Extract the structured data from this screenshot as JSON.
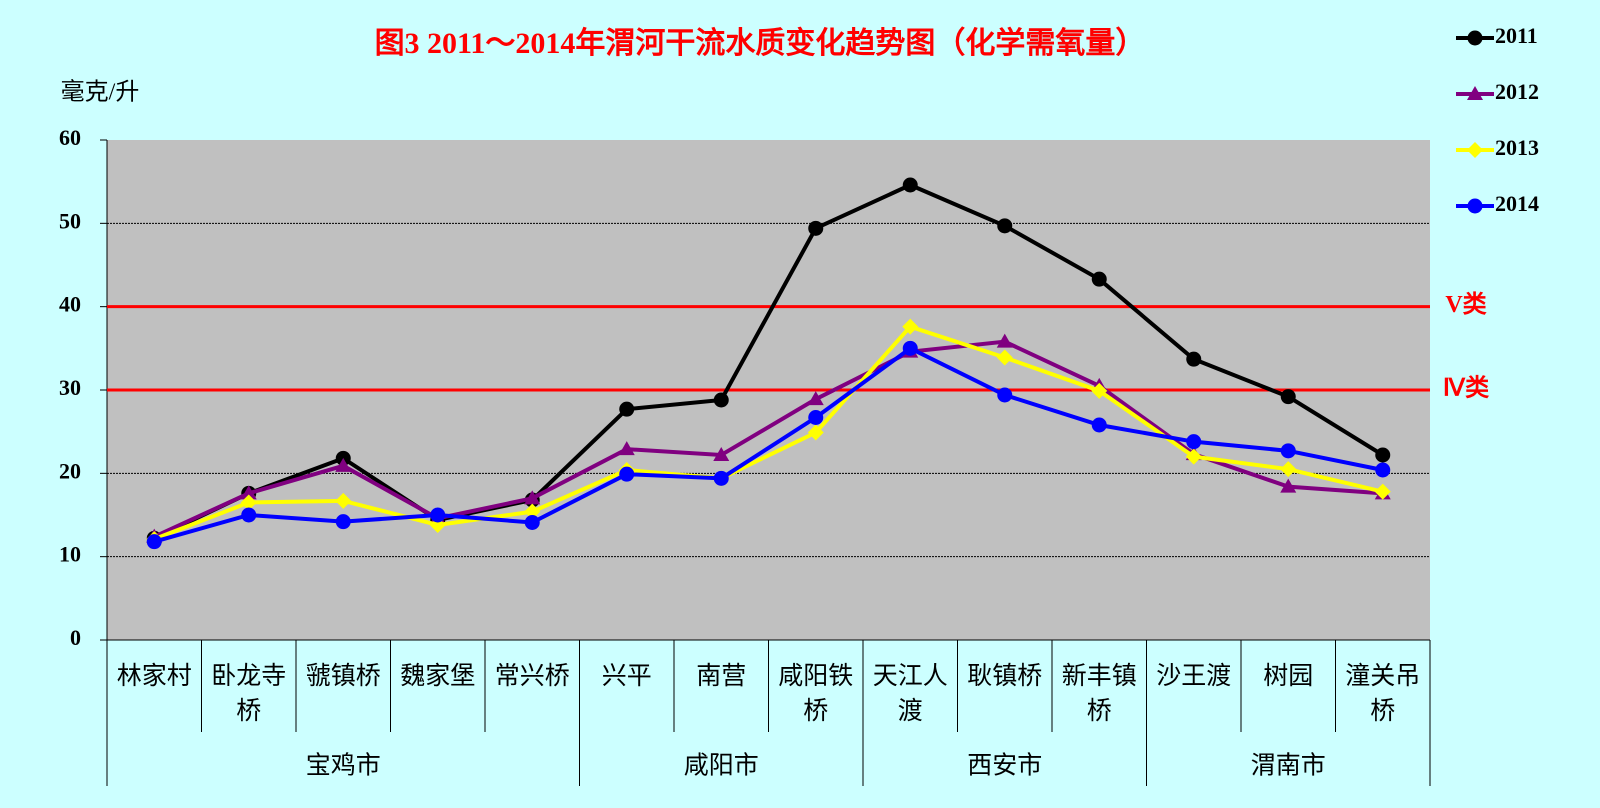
{
  "chart_data": {
    "type": "line",
    "title": "图3  2011～2014年渭河干流水质变化趋势图（化学需氧量）",
    "y_label": "毫克/升",
    "groups": [
      {
        "name": "宝鸡市",
        "categories": [
          "林家村",
          "卧龙寺桥",
          "虢镇桥",
          "魏家堡",
          "常兴桥"
        ]
      },
      {
        "name": "咸阳市",
        "categories": [
          "兴平",
          "南营",
          "咸阳铁桥"
        ]
      },
      {
        "name": "西安市",
        "categories": [
          "天江人渡",
          "耿镇桥",
          "新丰镇桥"
        ]
      },
      {
        "name": "渭南市",
        "categories": [
          "沙王渡",
          "树园",
          "潼关吊桥"
        ]
      }
    ],
    "series": [
      {
        "name": "2011",
        "color": "#000000",
        "marker": "circle",
        "values": [
          12.2,
          17.6,
          21.8,
          14.4,
          16.8,
          27.7,
          28.8,
          49.4,
          54.6,
          49.7,
          43.3,
          33.7,
          29.2,
          22.2
        ]
      },
      {
        "name": "2012",
        "color": "#800080",
        "marker": "triangle",
        "values": [
          12.4,
          17.6,
          20.9,
          14.6,
          17.0,
          22.9,
          22.2,
          28.9,
          34.6,
          35.8,
          30.5,
          22.3,
          18.4,
          17.6
        ]
      },
      {
        "name": "2013",
        "color": "#ffff00",
        "marker": "diamond",
        "values": [
          12.1,
          16.5,
          16.7,
          13.8,
          15.4,
          20.4,
          19.4,
          24.9,
          37.6,
          33.9,
          29.9,
          22.0,
          20.5,
          17.8
        ]
      },
      {
        "name": "2014",
        "color": "#0000ff",
        "marker": "circle",
        "values": [
          11.8,
          15.0,
          14.2,
          15.0,
          14.1,
          19.9,
          19.4,
          26.7,
          35.0,
          29.4,
          25.8,
          23.8,
          22.7,
          20.4
        ]
      }
    ],
    "reference_lines": [
      {
        "value": 40,
        "label": "V类"
      },
      {
        "value": 30,
        "label": "Ⅳ类"
      }
    ],
    "reference_color": "#ff0000",
    "ylim": [
      0,
      60
    ],
    "yticks": [
      0,
      10,
      20,
      30,
      40,
      50,
      60
    ],
    "grid": true,
    "legend": "right"
  }
}
